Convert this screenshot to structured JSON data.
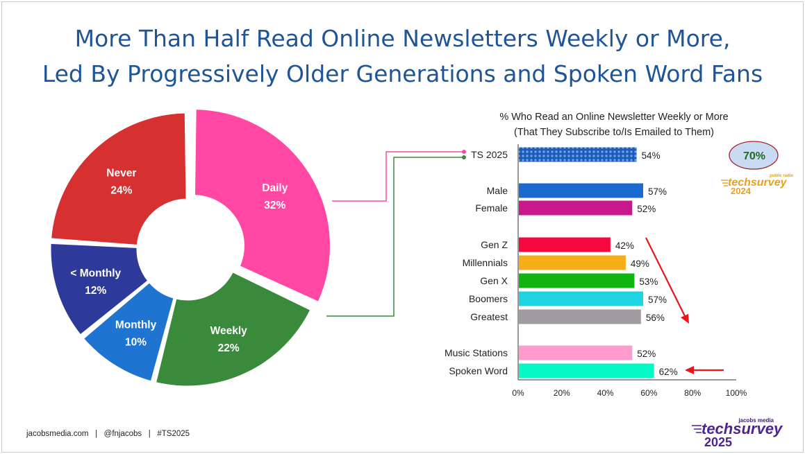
{
  "title": {
    "line1": "More Than Half Read Online Newsletters Weekly or More,",
    "line2": "Led By Progressively Older Generations and Spoken Word Fans"
  },
  "footer": {
    "site": "jacobsmedia.com",
    "handle": "@fnjacobs",
    "tag": "#TS2025",
    "separator": "|"
  },
  "badge": {
    "value": "70%"
  },
  "logo_2024": {
    "top": "public radio",
    "main": "techsurvey",
    "year": "2024"
  },
  "logo_2025": {
    "top": "jacobs media",
    "main": "techsurvey",
    "year": "2025"
  },
  "chart_data": [
    {
      "type": "pie",
      "categories": [
        "Daily",
        "Weekly",
        "Monthly",
        "< Monthly",
        "Never"
      ],
      "values": [
        32,
        22,
        10,
        12,
        24
      ],
      "labels": [
        "32%",
        "22%",
        "10%",
        "12%",
        "24%"
      ],
      "colors": [
        "#ff47a3",
        "#3a8a3c",
        "#1f74d1",
        "#2e3a9a",
        "#d63030"
      ]
    },
    {
      "type": "bar",
      "orientation": "horizontal",
      "title_line1": "% Who Read an Online Newsletter Weekly or More",
      "title_line2": "(That They Subscribe to/Is Emailed to Them)",
      "categories": [
        "TS 2025",
        "Male",
        "Female",
        "Gen Z",
        "Millennials",
        "Gen X",
        "Boomers",
        "Greatest",
        "Music Stations",
        "Spoken Word"
      ],
      "values": [
        54,
        57,
        52,
        42,
        49,
        53,
        57,
        56,
        52,
        62
      ],
      "labels": [
        "54%",
        "57%",
        "52%",
        "42%",
        "49%",
        "53%",
        "57%",
        "56%",
        "52%",
        "62%"
      ],
      "colors": [
        "#2a6ac4",
        "#1b6ad0",
        "#c8198c",
        "#f4083e",
        "#f6ad18",
        "#11b511",
        "#1ed3e2",
        "#a09aa1",
        "#ff9ccd",
        "#06f8c6"
      ],
      "xlim": [
        0,
        100
      ],
      "xticks": [
        "0%",
        "20%",
        "40%",
        "60%",
        "80%",
        "100%"
      ]
    }
  ]
}
